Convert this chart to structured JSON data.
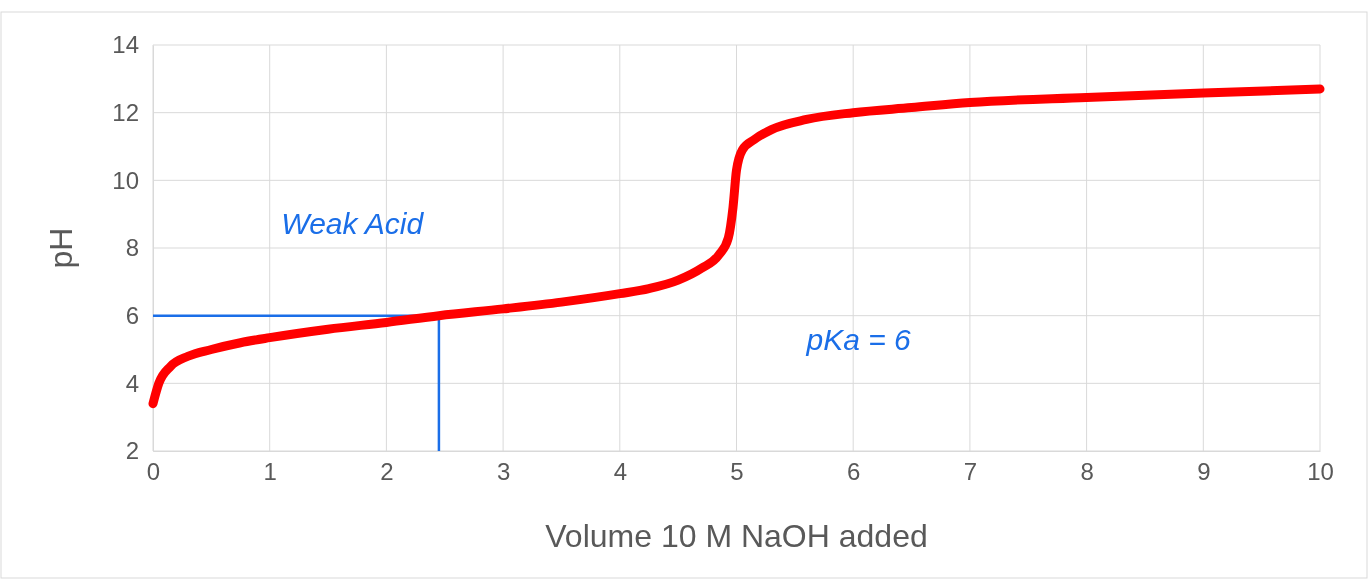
{
  "chart_data": {
    "type": "line",
    "xlabel": "Volume 10 M NaOH added",
    "ylabel": "pH",
    "xlim": [
      0,
      10
    ],
    "xticks": [
      0,
      1,
      2,
      3,
      4,
      5,
      6,
      7,
      8,
      9,
      10
    ],
    "ylim": [
      2,
      14
    ],
    "yticks": [
      2,
      4,
      6,
      8,
      10,
      12,
      14
    ],
    "grid": true,
    "marker": "none",
    "line_style": "solid",
    "series": [
      {
        "color": "#ff0000",
        "x": [
          0,
          0.05,
          0.15,
          0.3,
          0.5,
          0.75,
          1,
          1.5,
          2,
          2.45,
          3,
          3.5,
          4,
          4.25,
          4.5,
          4.7,
          4.85,
          4.93,
          4.97,
          5,
          5.05,
          5.15,
          5.3,
          5.6,
          6,
          6.5,
          7,
          8,
          9,
          10
        ],
        "values": [
          3.4,
          4.0,
          4.5,
          4.8,
          5.0,
          5.2,
          5.35,
          5.6,
          5.8,
          6.0,
          6.2,
          6.4,
          6.65,
          6.8,
          7.05,
          7.4,
          7.8,
          8.3,
          9.2,
          10.3,
          10.9,
          11.2,
          11.5,
          11.8,
          12.0,
          12.15,
          12.3,
          12.45,
          12.58,
          12.7
        ]
      }
    ],
    "ref_lines": [
      {
        "axis": "y",
        "value": 6,
        "color": "#1a6ee8",
        "line_style": "solid"
      },
      {
        "axis": "x",
        "value": 2.45,
        "color": "#1a6ee8",
        "line_style": "solid"
      }
    ],
    "annotations": [
      "Weak Acid",
      "pKa = 6"
    ]
  }
}
